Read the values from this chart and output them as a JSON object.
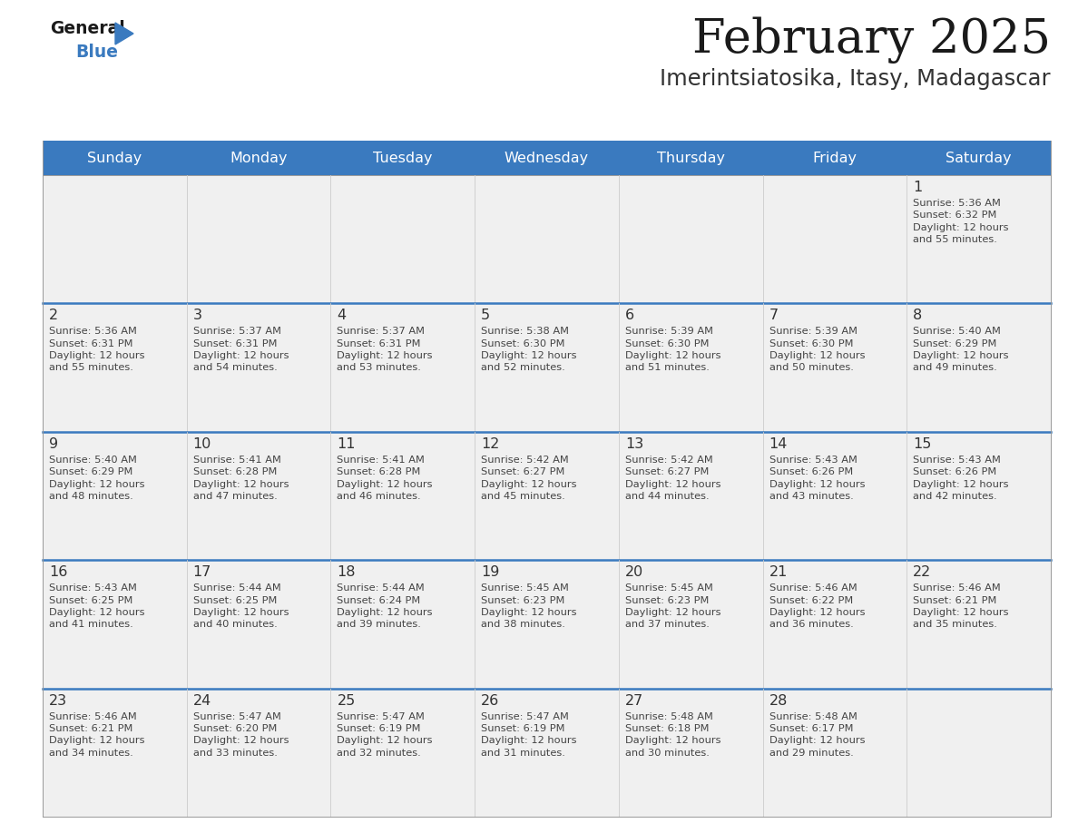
{
  "title": "February 2025",
  "subtitle": "Imerintsiatosika, Itasy, Madagascar",
  "header_color": "#3a7abf",
  "header_text_color": "#ffffff",
  "cell_bg_color": "#f0f0f0",
  "day_headers": [
    "Sunday",
    "Monday",
    "Tuesday",
    "Wednesday",
    "Thursday",
    "Friday",
    "Saturday"
  ],
  "title_color": "#1a1a1a",
  "subtitle_color": "#333333",
  "line_color": "#3a7abf",
  "separator_color": "#bbbbbb",
  "day_number_color": "#333333",
  "cell_text_color": "#444444",
  "calendar": [
    [
      {
        "day": "",
        "info": ""
      },
      {
        "day": "",
        "info": ""
      },
      {
        "day": "",
        "info": ""
      },
      {
        "day": "",
        "info": ""
      },
      {
        "day": "",
        "info": ""
      },
      {
        "day": "",
        "info": ""
      },
      {
        "day": "1",
        "info": "Sunrise: 5:36 AM\nSunset: 6:32 PM\nDaylight: 12 hours\nand 55 minutes."
      }
    ],
    [
      {
        "day": "2",
        "info": "Sunrise: 5:36 AM\nSunset: 6:31 PM\nDaylight: 12 hours\nand 55 minutes."
      },
      {
        "day": "3",
        "info": "Sunrise: 5:37 AM\nSunset: 6:31 PM\nDaylight: 12 hours\nand 54 minutes."
      },
      {
        "day": "4",
        "info": "Sunrise: 5:37 AM\nSunset: 6:31 PM\nDaylight: 12 hours\nand 53 minutes."
      },
      {
        "day": "5",
        "info": "Sunrise: 5:38 AM\nSunset: 6:30 PM\nDaylight: 12 hours\nand 52 minutes."
      },
      {
        "day": "6",
        "info": "Sunrise: 5:39 AM\nSunset: 6:30 PM\nDaylight: 12 hours\nand 51 minutes."
      },
      {
        "day": "7",
        "info": "Sunrise: 5:39 AM\nSunset: 6:30 PM\nDaylight: 12 hours\nand 50 minutes."
      },
      {
        "day": "8",
        "info": "Sunrise: 5:40 AM\nSunset: 6:29 PM\nDaylight: 12 hours\nand 49 minutes."
      }
    ],
    [
      {
        "day": "9",
        "info": "Sunrise: 5:40 AM\nSunset: 6:29 PM\nDaylight: 12 hours\nand 48 minutes."
      },
      {
        "day": "10",
        "info": "Sunrise: 5:41 AM\nSunset: 6:28 PM\nDaylight: 12 hours\nand 47 minutes."
      },
      {
        "day": "11",
        "info": "Sunrise: 5:41 AM\nSunset: 6:28 PM\nDaylight: 12 hours\nand 46 minutes."
      },
      {
        "day": "12",
        "info": "Sunrise: 5:42 AM\nSunset: 6:27 PM\nDaylight: 12 hours\nand 45 minutes."
      },
      {
        "day": "13",
        "info": "Sunrise: 5:42 AM\nSunset: 6:27 PM\nDaylight: 12 hours\nand 44 minutes."
      },
      {
        "day": "14",
        "info": "Sunrise: 5:43 AM\nSunset: 6:26 PM\nDaylight: 12 hours\nand 43 minutes."
      },
      {
        "day": "15",
        "info": "Sunrise: 5:43 AM\nSunset: 6:26 PM\nDaylight: 12 hours\nand 42 minutes."
      }
    ],
    [
      {
        "day": "16",
        "info": "Sunrise: 5:43 AM\nSunset: 6:25 PM\nDaylight: 12 hours\nand 41 minutes."
      },
      {
        "day": "17",
        "info": "Sunrise: 5:44 AM\nSunset: 6:25 PM\nDaylight: 12 hours\nand 40 minutes."
      },
      {
        "day": "18",
        "info": "Sunrise: 5:44 AM\nSunset: 6:24 PM\nDaylight: 12 hours\nand 39 minutes."
      },
      {
        "day": "19",
        "info": "Sunrise: 5:45 AM\nSunset: 6:23 PM\nDaylight: 12 hours\nand 38 minutes."
      },
      {
        "day": "20",
        "info": "Sunrise: 5:45 AM\nSunset: 6:23 PM\nDaylight: 12 hours\nand 37 minutes."
      },
      {
        "day": "21",
        "info": "Sunrise: 5:46 AM\nSunset: 6:22 PM\nDaylight: 12 hours\nand 36 minutes."
      },
      {
        "day": "22",
        "info": "Sunrise: 5:46 AM\nSunset: 6:21 PM\nDaylight: 12 hours\nand 35 minutes."
      }
    ],
    [
      {
        "day": "23",
        "info": "Sunrise: 5:46 AM\nSunset: 6:21 PM\nDaylight: 12 hours\nand 34 minutes."
      },
      {
        "day": "24",
        "info": "Sunrise: 5:47 AM\nSunset: 6:20 PM\nDaylight: 12 hours\nand 33 minutes."
      },
      {
        "day": "25",
        "info": "Sunrise: 5:47 AM\nSunset: 6:19 PM\nDaylight: 12 hours\nand 32 minutes."
      },
      {
        "day": "26",
        "info": "Sunrise: 5:47 AM\nSunset: 6:19 PM\nDaylight: 12 hours\nand 31 minutes."
      },
      {
        "day": "27",
        "info": "Sunrise: 5:48 AM\nSunset: 6:18 PM\nDaylight: 12 hours\nand 30 minutes."
      },
      {
        "day": "28",
        "info": "Sunrise: 5:48 AM\nSunset: 6:17 PM\nDaylight: 12 hours\nand 29 minutes."
      },
      {
        "day": "",
        "info": ""
      }
    ]
  ]
}
